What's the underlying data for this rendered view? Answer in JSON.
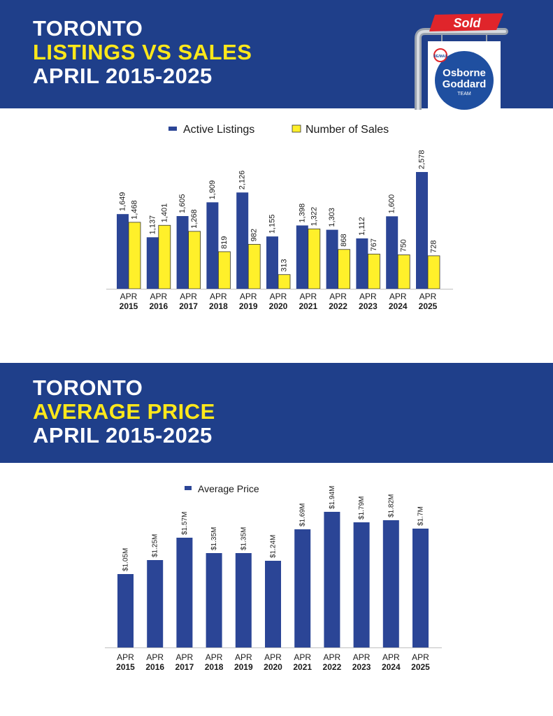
{
  "header1": {
    "line1": "TORONTO",
    "line2": "LISTINGS VS SALES",
    "line3": "APRIL 2015-2025"
  },
  "header2": {
    "line1": "TORONTO",
    "line2": "AVERAGE PRICE",
    "line3": "APRIL 2015-2025"
  },
  "logo": {
    "sold_text": "Sold",
    "brand_small": "RE/MAX",
    "line1": "Osborne",
    "line2": "Goddard",
    "line3": "TEAM"
  },
  "colors": {
    "banner": "#1f3f8a",
    "accent_yellow": "#ffe81a",
    "bar_blue": "#2b4596",
    "bar_yellow": "#fff02a",
    "sold_red": "#e0252b"
  },
  "chart_data": [
    {
      "type": "bar",
      "categories": [
        "APR 2015",
        "APR 2016",
        "APR 2017",
        "APR 2018",
        "APR 2019",
        "APR 2020",
        "APR 2021",
        "APR 2022",
        "APR 2023",
        "APR 2024",
        "APR 2025"
      ],
      "category_lines": [
        [
          "APR",
          "2015"
        ],
        [
          "APR",
          "2016"
        ],
        [
          "APR",
          "2017"
        ],
        [
          "APR",
          "2018"
        ],
        [
          "APR",
          "2019"
        ],
        [
          "APR",
          "2020"
        ],
        [
          "APR",
          "2021"
        ],
        [
          "APR",
          "2022"
        ],
        [
          "APR",
          "2023"
        ],
        [
          "APR",
          "2024"
        ],
        [
          "APR",
          "2025"
        ]
      ],
      "series": [
        {
          "name": "Active Listings",
          "color": "#2b4596",
          "values": [
            1649,
            1137,
            1605,
            1909,
            2126,
            1155,
            1398,
            1303,
            1112,
            1600,
            2578
          ],
          "labels": [
            "1,649",
            "1,137",
            "1,605",
            "1,909",
            "2,126",
            "1,155",
            "1,398",
            "1,303",
            "1,112",
            "1,600",
            "2,578"
          ]
        },
        {
          "name": "Number of Sales",
          "color": "#fff02a",
          "values": [
            1468,
            1401,
            1268,
            819,
            982,
            313,
            1322,
            868,
            767,
            750,
            728
          ],
          "labels": [
            "1,468",
            "1,401",
            "1,268",
            "819",
            "982",
            "313",
            "1,322",
            "868",
            "767",
            "750",
            "728"
          ]
        }
      ],
      "legend": "top-center",
      "grid": false,
      "ylim": [
        0,
        2578
      ]
    },
    {
      "type": "bar",
      "categories": [
        "APR 2015",
        "APR 2016",
        "APR 2017",
        "APR 2018",
        "APR 2019",
        "APR 2020",
        "APR 2021",
        "APR 2022",
        "APR 2023",
        "APR 2024",
        "APR 2025"
      ],
      "category_lines": [
        [
          "APR",
          "2015"
        ],
        [
          "APR",
          "2016"
        ],
        [
          "APR",
          "2017"
        ],
        [
          "APR",
          "2018"
        ],
        [
          "APR",
          "2019"
        ],
        [
          "APR",
          "2020"
        ],
        [
          "APR",
          "2021"
        ],
        [
          "APR",
          "2022"
        ],
        [
          "APR",
          "2023"
        ],
        [
          "APR",
          "2024"
        ],
        [
          "APR",
          "2025"
        ]
      ],
      "series": [
        {
          "name": "Average Price",
          "color": "#2b4596",
          "values": [
            1.05,
            1.25,
            1.57,
            1.35,
            1.35,
            1.24,
            1.69,
            1.94,
            1.79,
            1.82,
            1.7
          ],
          "labels": [
            "$1.05M",
            "$1.25M",
            "$1.57M",
            "$1.35M",
            "$1.35M",
            "$1.24M",
            "$1.69M",
            "$1.94M",
            "$1.79M",
            "$1.82M",
            "$1.7M"
          ]
        }
      ],
      "legend": "top-center",
      "grid": false,
      "ylim": [
        0,
        1.94
      ]
    }
  ]
}
